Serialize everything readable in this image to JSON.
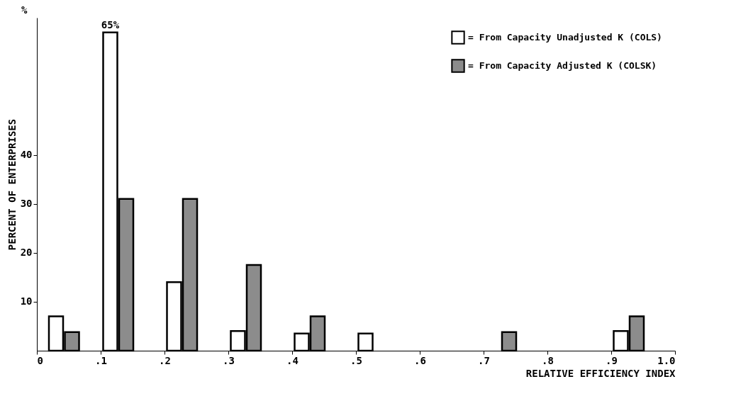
{
  "chart_data": {
    "type": "bar",
    "xlabel": "RELATIVE EFFICIENCY INDEX",
    "ylabel": "PERCENT OF ENTERPRISES",
    "annotations": [
      "%"
    ],
    "xlim": [
      0,
      1.0
    ],
    "xticks": [
      0,
      {
        "value": 0.1,
        "label": ".1"
      },
      {
        "value": 0.2,
        "label": ".2"
      },
      {
        "value": 0.3,
        "label": ".3"
      },
      {
        "value": 0.4,
        "label": ".4"
      },
      {
        "value": 0.5,
        "label": ".5"
      },
      {
        "value": 0.6,
        "label": ".6"
      },
      {
        "value": 0.7,
        "label": ".7"
      },
      {
        "value": 0.8,
        "label": ".8"
      },
      {
        "value": 0.9,
        "label": ".9"
      },
      {
        "value": 1.0,
        "label": "1.0"
      }
    ],
    "ylim": [
      0,
      68
    ],
    "yticks": [
      10,
      20,
      30,
      40
    ],
    "grid": false,
    "legend": "top right",
    "series": [
      {
        "name": "= From Capacity Unadjusted K (COLS)",
        "color": "#ffffff",
        "x": [
          0.03,
          0.115,
          0.215,
          0.315,
          0.415,
          0.515,
          0.915
        ],
        "values": [
          7,
          65,
          14,
          4,
          3.5,
          3.5,
          4
        ],
        "value_labels": [
          null,
          "65%",
          null,
          null,
          null,
          null,
          null
        ]
      },
      {
        "name": "= From Capacity Adjusted K (COLSK)",
        "color": "#8c8c8c",
        "x": [
          0.055,
          0.14,
          0.24,
          0.34,
          0.44,
          0.74,
          0.94
        ],
        "values": [
          3.8,
          31,
          31,
          17.5,
          7,
          3.8,
          7
        ]
      }
    ]
  }
}
